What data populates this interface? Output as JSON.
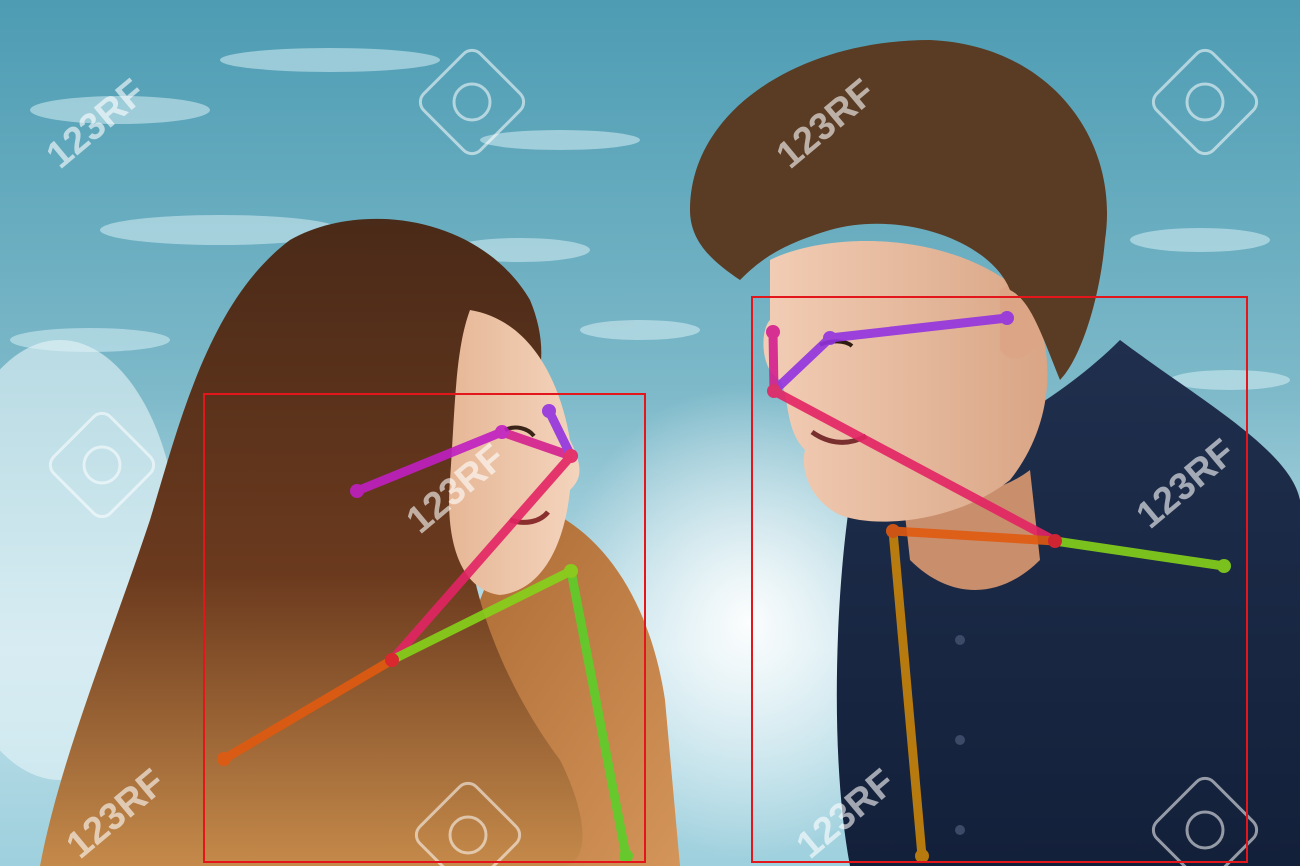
{
  "image": {
    "watermark_text": "123RF",
    "colors": {
      "water_light": "#bfe0ea",
      "water_mid": "#5fa7bd",
      "water_dark": "#2f7f98",
      "bbox": "#e3171b",
      "limb_face_left": "#c01fc2",
      "limb_face_right": "#9333e0",
      "limb_neck": "#e32464",
      "limb_shoulder_left": "#e05a10",
      "limb_shoulder_right": "#86d21a",
      "limb_arm_left": "#c9840a",
      "limb_arm_right": "#5ccf2a"
    },
    "people": [
      {
        "role": "woman",
        "hair": "long brown ombre",
        "clothing": "tan leather jacket"
      },
      {
        "role": "man",
        "hair": "short brown",
        "clothing": "navy button shirt"
      }
    ],
    "pose_overlays": 2,
    "bounding_boxes": 2
  }
}
